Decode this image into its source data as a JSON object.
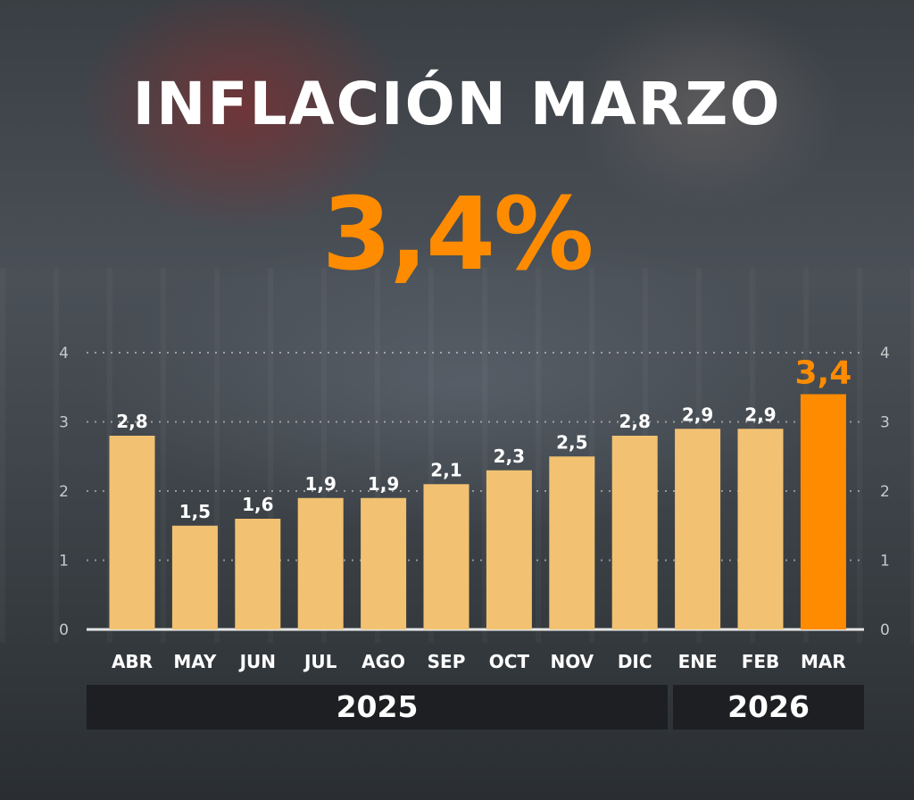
{
  "title": "INFLACIÓN MARZO",
  "headline_value": "3,4%",
  "colors": {
    "bar": "#f2c272",
    "highlight": "#ff8c00",
    "text": "#ffffff",
    "axis": "#c8cacc",
    "band": "#1d1f22"
  },
  "chart_data": {
    "type": "bar",
    "categories": [
      "ABR",
      "MAY",
      "JUN",
      "JUL",
      "AGO",
      "SEP",
      "OCT",
      "NOV",
      "DIC",
      "ENE",
      "FEB",
      "MAR"
    ],
    "values": [
      2.8,
      1.5,
      1.6,
      1.9,
      1.9,
      2.1,
      2.3,
      2.5,
      2.8,
      2.9,
      2.9,
      3.4
    ],
    "value_labels": [
      "2,8",
      "1,5",
      "1,6",
      "1,9",
      "1,9",
      "2,1",
      "2,3",
      "2,5",
      "2,8",
      "2,9",
      "2,9",
      "3,4"
    ],
    "highlight_index": 11,
    "ylim": [
      0,
      4
    ],
    "yticks": [
      0,
      1,
      2,
      3,
      4
    ],
    "grid": true,
    "year_groups": [
      {
        "label": "2025",
        "categories": [
          "ABR",
          "MAY",
          "JUN",
          "JUL",
          "AGO",
          "SEP",
          "OCT",
          "NOV",
          "DIC"
        ]
      },
      {
        "label": "2026",
        "categories": [
          "ENE",
          "FEB",
          "MAR"
        ]
      }
    ]
  }
}
